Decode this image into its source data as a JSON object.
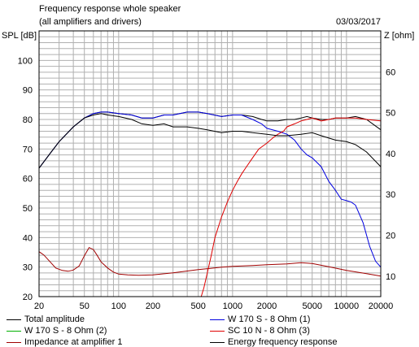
{
  "chart_data": {
    "type": "line",
    "title": "Frequency response whole speaker",
    "subtitle": "(all amplifiers and drivers)",
    "date": "03/03/2017",
    "ylabel": "SPL [dB]",
    "y2label": "Z [ohm]",
    "x_scale": "log",
    "xlim": [
      20,
      20000
    ],
    "ylim": [
      20,
      110
    ],
    "y2lim": [
      5,
      70
    ],
    "grid": true,
    "x_ticks": [
      "20",
      "50",
      "100",
      "200",
      "500",
      "1000",
      "2000",
      "5000",
      "10000",
      "20000"
    ],
    "y_ticks": [
      "20",
      "30",
      "40",
      "50",
      "60",
      "70",
      "80",
      "90",
      "100"
    ],
    "y2_ticks": [
      "10",
      "20",
      "30",
      "40",
      "50",
      "60"
    ],
    "series": [
      {
        "name": "Total amplitude",
        "color": "#000000",
        "axis": "left",
        "x": [
          20,
          25,
          30,
          40,
          50,
          60,
          70,
          80,
          100,
          130,
          160,
          200,
          250,
          300,
          400,
          500,
          600,
          800,
          1000,
          1200,
          1500,
          1800,
          2000,
          2500,
          3000,
          3500,
          4000,
          4500,
          5000,
          6000,
          7000,
          8000,
          10000,
          12000,
          15000,
          20000
        ],
        "y": [
          63.5,
          68.5,
          72.5,
          77.5,
          80.5,
          82,
          82.5,
          82.5,
          82,
          81.5,
          80.5,
          80.5,
          81.5,
          81.5,
          82.5,
          82.5,
          82,
          81,
          81.5,
          81.5,
          81,
          80,
          79.5,
          79.5,
          80,
          80,
          80.5,
          81,
          80.5,
          80,
          80,
          80.5,
          80.5,
          81,
          80,
          76.5
        ]
      },
      {
        "name": "W 170 S - 8 Ohm (2)",
        "color": "#00b000",
        "axis": "left",
        "x": [
          20,
          20000
        ],
        "y": [
          20,
          20
        ]
      },
      {
        "name": "Impedance at amplifier 1",
        "color": "#a00000",
        "axis": "right",
        "x": [
          20,
          22,
          25,
          28,
          32,
          36,
          40,
          45,
          50,
          55,
          60,
          65,
          70,
          80,
          90,
          100,
          120,
          150,
          200,
          300,
          500,
          800,
          1000,
          1500,
          2000,
          3000,
          4000,
          5000,
          7000,
          10000,
          15000,
          20000
        ],
        "y": [
          16,
          15.2,
          13.5,
          12,
          11.4,
          11.2,
          11.5,
          12.5,
          15,
          17,
          16.5,
          15,
          13.5,
          12,
          11,
          10.5,
          10.3,
          10.2,
          10.3,
          10.8,
          11.6,
          12.2,
          12.4,
          12.6,
          12.8,
          13,
          13.3,
          13.1,
          12.3,
          11.4,
          10.6,
          10
        ]
      },
      {
        "name": "W 170 S - 8 Ohm (1)",
        "color": "#0000e0",
        "axis": "left",
        "x": [
          20,
          25,
          30,
          40,
          50,
          60,
          70,
          80,
          100,
          130,
          160,
          200,
          250,
          300,
          400,
          500,
          600,
          800,
          1000,
          1200,
          1500,
          1800,
          2000,
          2500,
          3000,
          3500,
          4000,
          4500,
          5000,
          6000,
          7000,
          8000,
          9000,
          10000,
          11000,
          12000,
          14000,
          16000,
          18000,
          20000
        ],
        "y": [
          63.5,
          68.5,
          72.5,
          77.5,
          80.5,
          82,
          82.5,
          82.5,
          82,
          81.5,
          80.5,
          80.5,
          81.5,
          81.5,
          82.5,
          82.5,
          82,
          81,
          81.5,
          81.5,
          80,
          78.5,
          77,
          76,
          75,
          73,
          70,
          68,
          67,
          64,
          59,
          56,
          53,
          52.5,
          52,
          51,
          45,
          37,
          32,
          30
        ]
      },
      {
        "name": "SC 10 N - 8 Ohm (3)",
        "color": "#e00000",
        "axis": "left",
        "x": [
          530,
          560,
          600,
          650,
          700,
          800,
          900,
          1000,
          1100,
          1200,
          1300,
          1500,
          1700,
          2000,
          2300,
          2500,
          2800,
          3000,
          3500,
          4000,
          4500,
          5000,
          5500,
          6000,
          7000,
          8000,
          10000,
          12000,
          15000,
          20000
        ],
        "y": [
          20,
          23,
          28,
          34,
          40,
          47,
          52,
          56,
          59,
          61.5,
          63.5,
          67,
          70,
          72,
          74,
          75,
          76,
          77.5,
          78.5,
          79.5,
          80,
          80.5,
          80,
          79.5,
          80,
          80.5,
          80.5,
          80.5,
          80,
          79.5
        ]
      },
      {
        "name": "Energy frequency response",
        "color": "#000000",
        "axis": "left",
        "x": [
          20,
          25,
          30,
          40,
          50,
          60,
          70,
          80,
          100,
          130,
          160,
          200,
          250,
          300,
          400,
          500,
          600,
          800,
          1000,
          1200,
          1500,
          2000,
          2500,
          3000,
          4000,
          5000,
          6000,
          8000,
          10000,
          12000,
          15000,
          20000
        ],
        "y": [
          63.5,
          68.5,
          72.5,
          77.5,
          80.5,
          81.5,
          82,
          81.5,
          81,
          80,
          78.5,
          78,
          78.5,
          77.5,
          77.5,
          77,
          76.5,
          75.5,
          76,
          76,
          75.5,
          75,
          74.5,
          74.5,
          75,
          75.5,
          74.5,
          73,
          72.5,
          71.5,
          69,
          64
        ]
      }
    ]
  }
}
